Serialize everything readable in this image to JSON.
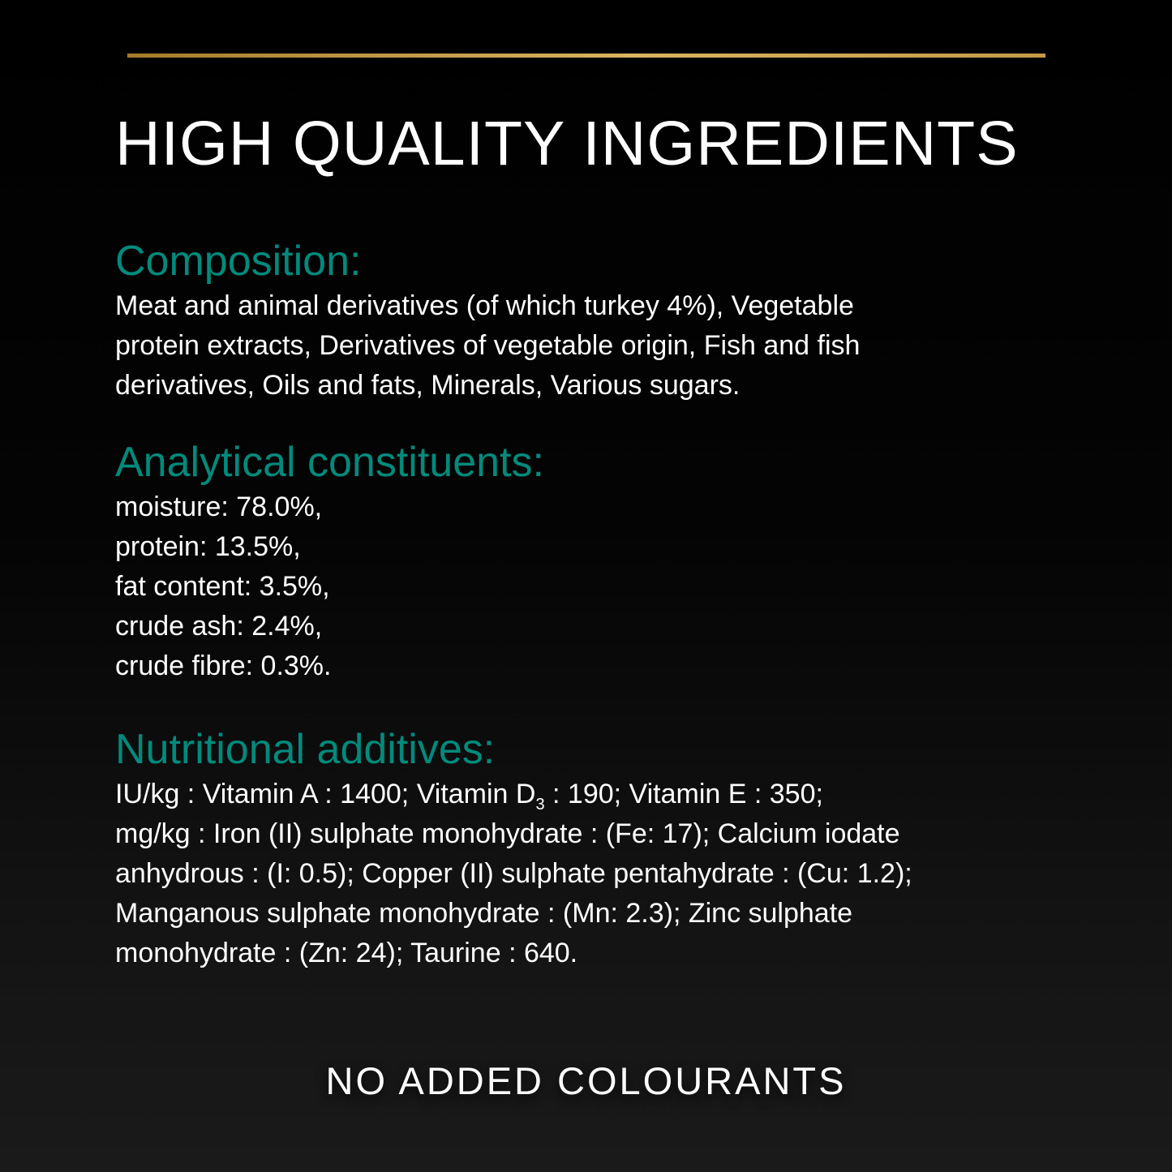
{
  "accent_gold": "#c9a24f",
  "accent_teal": "#008a7c",
  "title": "HIGH QUALITY INGREDIENTS",
  "composition": {
    "heading": "Composition:",
    "lines": [
      "Meat and animal derivatives (of which turkey 4%), Vegetable",
      "protein extracts, Derivatives of vegetable origin, Fish and fish",
      "derivatives, Oils and fats, Minerals, Various sugars."
    ]
  },
  "analytical": {
    "heading": "Analytical constituents:",
    "lines": [
      "moisture: 78.0%,",
      "protein: 13.5%,",
      "fat content: 3.5%,",
      "crude ash: 2.4%,",
      "crude fibre: 0.3%."
    ]
  },
  "nutritional": {
    "heading": "Nutritional additives:",
    "line1_a": "IU/kg : Vitamin A : 1400; Vitamin D",
    "line1_sub": "3",
    "line1_b": " : 190; Vitamin E : 350;",
    "lines": [
      "mg/kg : Iron (II) sulphate monohydrate : (Fe: 17); Calcium iodate",
      "anhydrous : (I: 0.5); Copper (II) sulphate pentahydrate : (Cu: 1.2);",
      "Manganous sulphate monohydrate : (Mn: 2.3); Zinc sulphate",
      "monohydrate : (Zn: 24); Taurine : 640."
    ]
  },
  "footer": "NO ADDED COLOURANTS"
}
